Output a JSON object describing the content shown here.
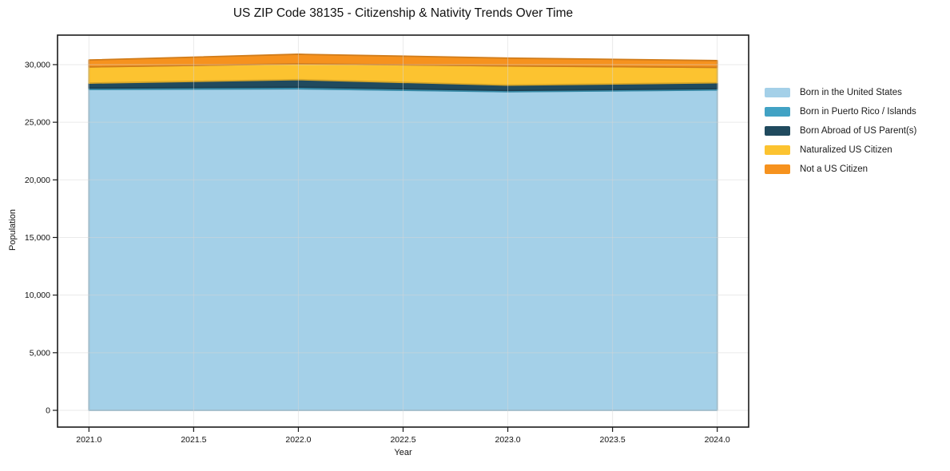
{
  "title": "US ZIP Code 38135 - Citizenship & Nativity Trends Over Time",
  "chart_data": {
    "type": "area",
    "stacked": true,
    "title": "US ZIP Code 38135 - Citizenship & Nativity Trends Over Time",
    "xlabel": "Year",
    "ylabel": "Population",
    "x": [
      2021,
      2022,
      2023,
      2024
    ],
    "series": [
      {
        "name": "Born in the United States",
        "color": "#a4d0e8",
        "values": [
          27850,
          27900,
          27650,
          27800
        ]
      },
      {
        "name": "Born in Puerto Rico / Islands",
        "color": "#41a2c4",
        "values": [
          120,
          150,
          110,
          120
        ]
      },
      {
        "name": "Born Abroad of US Parent(s)",
        "color": "#204a5e",
        "values": [
          430,
          650,
          460,
          510
        ]
      },
      {
        "name": "Naturalized US Citizen",
        "color": "#fcc330",
        "values": [
          1400,
          1370,
          1670,
          1330
        ]
      },
      {
        "name": "Not a US Citizen",
        "color": "#f6921e",
        "values": [
          600,
          830,
          680,
          590
        ]
      }
    ],
    "xlim": [
      2020.85,
      2024.15
    ],
    "ylim": [
      -1455,
      32560
    ],
    "x_ticks": [
      {
        "v": 2021.0,
        "label": "2021.0"
      },
      {
        "v": 2021.5,
        "label": "2021.5"
      },
      {
        "v": 2022.0,
        "label": "2022.0"
      },
      {
        "v": 2022.5,
        "label": "2022.5"
      },
      {
        "v": 2023.0,
        "label": "2023.0"
      },
      {
        "v": 2023.5,
        "label": "2023.5"
      },
      {
        "v": 2024.0,
        "label": "2024.0"
      }
    ],
    "y_ticks": [
      {
        "v": 0,
        "label": "0"
      },
      {
        "v": 5000,
        "label": "5,000"
      },
      {
        "v": 10000,
        "label": "10,000"
      },
      {
        "v": 15000,
        "label": "15,000"
      },
      {
        "v": 20000,
        "label": "20,000"
      },
      {
        "v": 25000,
        "label": "25,000"
      },
      {
        "v": 30000,
        "label": "30,000"
      }
    ],
    "grid": true,
    "legend_position": "right"
  }
}
